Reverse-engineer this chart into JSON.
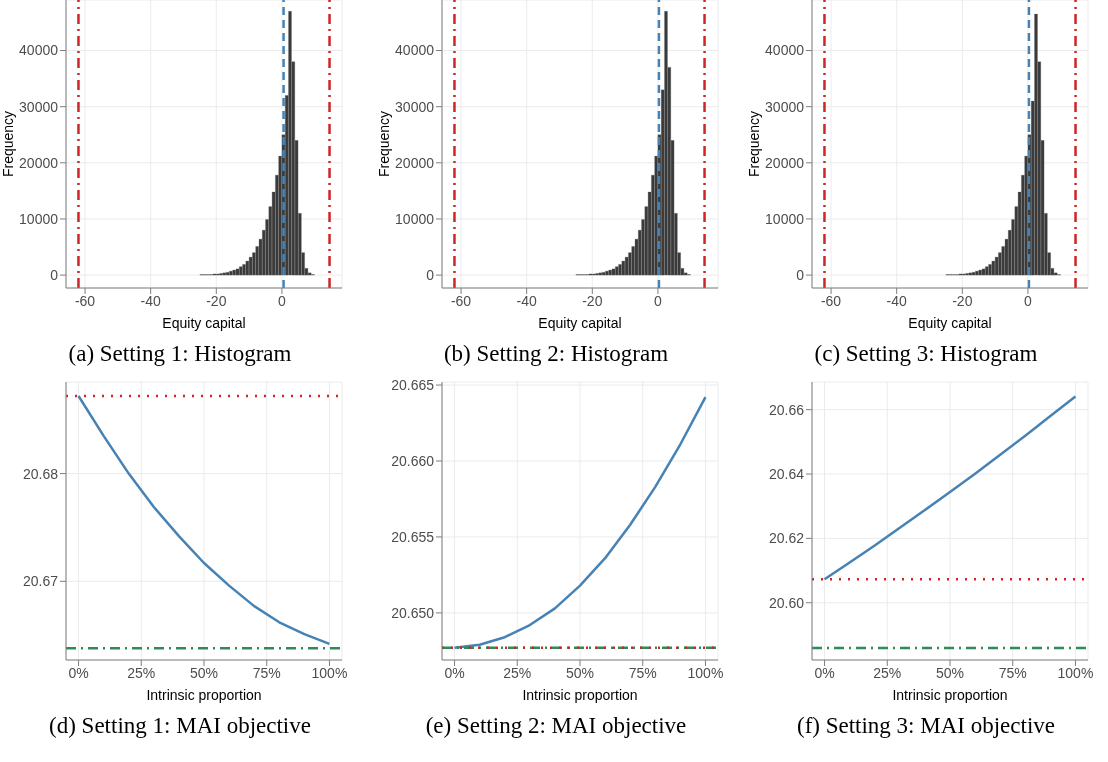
{
  "chart_data": [
    {
      "type": "histogram",
      "title": "(a) Setting 1: Histogram",
      "xlabel": "Equity capital",
      "ylabel": "Frequency",
      "color": "#3a3a3a",
      "grid": true,
      "bins": [
        -62,
        -61,
        -60,
        -59,
        -58,
        -57,
        -56,
        -55,
        -54,
        -53,
        -52,
        -51,
        -50,
        -49,
        -48,
        -47,
        -46,
        -45,
        -44,
        -43,
        -42,
        -41,
        -40,
        -39,
        -38,
        -37,
        -36,
        -35,
        -34,
        -33,
        -32,
        -31,
        -30,
        -29,
        -28,
        -27,
        -26,
        -25,
        -24,
        -23,
        -22,
        -21,
        -20,
        -19,
        -18,
        -17,
        -16,
        -15,
        -14,
        -13,
        -12,
        -11,
        -10,
        -9,
        -8,
        -7,
        -6,
        -5,
        -4,
        -3,
        -2,
        -1,
        0,
        1,
        2,
        3,
        4,
        5,
        6,
        7,
        8,
        9,
        10,
        11,
        12,
        13,
        14,
        15
      ],
      "values": [
        0,
        0,
        0,
        0,
        0,
        0,
        0,
        0,
        0,
        0,
        0,
        0,
        0,
        0,
        0,
        0,
        0,
        0,
        0,
        0,
        0,
        0,
        0,
        0,
        0,
        0,
        0,
        0,
        0,
        0,
        0,
        0,
        0,
        0,
        0,
        0,
        0,
        100,
        100,
        100,
        100,
        200,
        200,
        300,
        400,
        500,
        700,
        900,
        1100,
        1500,
        1900,
        2500,
        3200,
        4000,
        5100,
        6400,
        8000,
        9900,
        12200,
        14800,
        17800,
        21200,
        25000,
        32000,
        47000,
        38000,
        24000,
        11000,
        4000,
        1200,
        400,
        100,
        0,
        0,
        0,
        0,
        0
      ],
      "xlim": [
        -65.8,
        18.3
      ],
      "xticks": [
        -60,
        -40,
        -20,
        0
      ],
      "ylim": [
        -2300,
        49000
      ],
      "yticks": [
        0,
        10000,
        20000,
        30000,
        40000
      ],
      "ref_lines": [
        {
          "axis": "x",
          "value": -62,
          "color": "#cd2626",
          "line_style": "dashdot"
        },
        {
          "axis": "x",
          "value": 0.5,
          "color": "#4682b4",
          "line_style": "dashed"
        },
        {
          "axis": "x",
          "value": 14.5,
          "color": "#cd2626",
          "line_style": "dashdot"
        }
      ]
    },
    {
      "type": "histogram",
      "title": "(b) Setting 2: Histogram",
      "xlabel": "Equity capital",
      "ylabel": "Frequency",
      "color": "#3a3a3a",
      "grid": true,
      "bins": [
        -62,
        -61,
        -60,
        -59,
        -58,
        -57,
        -56,
        -55,
        -54,
        -53,
        -52,
        -51,
        -50,
        -49,
        -48,
        -47,
        -46,
        -45,
        -44,
        -43,
        -42,
        -41,
        -40,
        -39,
        -38,
        -37,
        -36,
        -35,
        -34,
        -33,
        -32,
        -31,
        -30,
        -29,
        -28,
        -27,
        -26,
        -25,
        -24,
        -23,
        -22,
        -21,
        -20,
        -19,
        -18,
        -17,
        -16,
        -15,
        -14,
        -13,
        -12,
        -11,
        -10,
        -9,
        -8,
        -7,
        -6,
        -5,
        -4,
        -3,
        -2,
        -1,
        0,
        1,
        2,
        3,
        4,
        5,
        6,
        7,
        8,
        9,
        10,
        11,
        12,
        13,
        14,
        15
      ],
      "values": [
        0,
        0,
        0,
        0,
        0,
        0,
        0,
        0,
        0,
        0,
        0,
        0,
        0,
        0,
        0,
        0,
        0,
        0,
        0,
        0,
        0,
        0,
        0,
        0,
        0,
        0,
        0,
        0,
        0,
        0,
        0,
        0,
        0,
        0,
        0,
        0,
        0,
        100,
        100,
        100,
        100,
        200,
        200,
        300,
        400,
        500,
        700,
        900,
        1100,
        1500,
        1900,
        2500,
        3200,
        4000,
        5100,
        6400,
        8000,
        9900,
        12200,
        14800,
        17800,
        21200,
        25000,
        33000,
        47000,
        37000,
        24000,
        11000,
        4000,
        1200,
        400,
        100,
        0,
        0,
        0,
        0,
        0
      ],
      "xlim": [
        -65.8,
        18.3
      ],
      "xticks": [
        -60,
        -40,
        -20,
        0
      ],
      "ylim": [
        -2300,
        49000
      ],
      "yticks": [
        0,
        10000,
        20000,
        30000,
        40000
      ],
      "ref_lines": [
        {
          "axis": "x",
          "value": -62,
          "color": "#cd2626",
          "line_style": "dashdot"
        },
        {
          "axis": "x",
          "value": 0.3,
          "color": "#4682b4",
          "line_style": "dashed"
        },
        {
          "axis": "x",
          "value": 14.2,
          "color": "#cd2626",
          "line_style": "dashdot"
        }
      ]
    },
    {
      "type": "histogram",
      "title": "(c) Setting 3: Histogram",
      "xlabel": "Equity capital",
      "ylabel": "Frequency",
      "color": "#3a3a3a",
      "grid": true,
      "bins": [
        -62,
        -61,
        -60,
        -59,
        -58,
        -57,
        -56,
        -55,
        -54,
        -53,
        -52,
        -51,
        -50,
        -49,
        -48,
        -47,
        -46,
        -45,
        -44,
        -43,
        -42,
        -41,
        -40,
        -39,
        -38,
        -37,
        -36,
        -35,
        -34,
        -33,
        -32,
        -31,
        -30,
        -29,
        -28,
        -27,
        -26,
        -25,
        -24,
        -23,
        -22,
        -21,
        -20,
        -19,
        -18,
        -17,
        -16,
        -15,
        -14,
        -13,
        -12,
        -11,
        -10,
        -9,
        -8,
        -7,
        -6,
        -5,
        -4,
        -3,
        -2,
        -1,
        0,
        1,
        2,
        3,
        4,
        5,
        6,
        7,
        8,
        9,
        10,
        11,
        12,
        13,
        14,
        15
      ],
      "values": [
        0,
        0,
        0,
        0,
        0,
        0,
        0,
        0,
        0,
        0,
        0,
        0,
        0,
        0,
        0,
        0,
        0,
        0,
        0,
        0,
        0,
        0,
        0,
        0,
        0,
        0,
        0,
        0,
        0,
        0,
        0,
        0,
        0,
        0,
        0,
        0,
        0,
        100,
        100,
        100,
        100,
        200,
        200,
        300,
        400,
        500,
        700,
        900,
        1100,
        1500,
        1900,
        2500,
        3200,
        4000,
        5100,
        6400,
        8000,
        9900,
        12200,
        14800,
        17800,
        21200,
        25000,
        31000,
        46500,
        38000,
        24000,
        11000,
        4000,
        1200,
        400,
        100,
        0,
        0,
        0,
        0,
        0
      ],
      "xlim": [
        -65.8,
        18.3
      ],
      "xticks": [
        -60,
        -40,
        -20,
        0
      ],
      "ylim": [
        -2300,
        49000
      ],
      "yticks": [
        0,
        10000,
        20000,
        30000,
        40000
      ],
      "ref_lines": [
        {
          "axis": "x",
          "value": -62,
          "color": "#cd2626",
          "line_style": "dashdot"
        },
        {
          "axis": "x",
          "value": 0.3,
          "color": "#4682b4",
          "line_style": "dashed"
        },
        {
          "axis": "x",
          "value": 14.5,
          "color": "#cd2626",
          "line_style": "dashdot"
        }
      ]
    },
    {
      "type": "line",
      "title": "(d) Setting 1: MAI objective",
      "xlabel": "Intrinsic proportion",
      "color": "#4682b4",
      "grid": true,
      "x": [
        0,
        10,
        20,
        30,
        40,
        50,
        60,
        70,
        80,
        90,
        100
      ],
      "values": [
        20.6872,
        20.6835,
        20.68,
        20.6769,
        20.6742,
        20.6717,
        20.6696,
        20.6677,
        20.6662,
        20.6651,
        20.6642
      ],
      "xlim": [
        -5,
        105
      ],
      "xticks": [
        {
          "value": 0,
          "label": "0%"
        },
        {
          "value": 25,
          "label": "25%"
        },
        {
          "value": 50,
          "label": "50%"
        },
        {
          "value": 75,
          "label": "75%"
        },
        {
          "value": 100,
          "label": "100%"
        }
      ],
      "ylim": [
        20.6627,
        20.6885
      ],
      "yticks": [
        20.67,
        20.68
      ],
      "ref_lines": [
        {
          "axis": "y",
          "value": 20.6872,
          "color": "#cd2626",
          "line_style": "dotted"
        },
        {
          "axis": "y",
          "value": 20.6638,
          "color": "#2e8b57",
          "line_style": "dashdot"
        }
      ]
    },
    {
      "type": "line",
      "title": "(e) Setting 2: MAI objective",
      "xlabel": "Intrinsic proportion",
      "color": "#4682b4",
      "grid": true,
      "x": [
        0,
        10,
        20,
        30,
        40,
        50,
        60,
        70,
        80,
        90,
        100
      ],
      "values": [
        20.6477,
        20.6479,
        20.6484,
        20.6492,
        20.6503,
        20.6518,
        20.6536,
        20.6558,
        20.6583,
        20.6611,
        20.6642
      ],
      "xlim": [
        -5,
        105
      ],
      "xticks": [
        {
          "value": 0,
          "label": "0%"
        },
        {
          "value": 25,
          "label": "25%"
        },
        {
          "value": 50,
          "label": "50%"
        },
        {
          "value": 75,
          "label": "75%"
        },
        {
          "value": 100,
          "label": "100%"
        }
      ],
      "ylim": [
        20.6469,
        20.6652
      ],
      "yticks": [
        {
          "value": 20.65,
          "label": "20.650"
        },
        {
          "value": 20.655,
          "label": "20.655"
        },
        {
          "value": 20.66,
          "label": "20.660"
        },
        {
          "value": 20.665,
          "label": "20.665"
        }
      ],
      "ref_lines": [
        {
          "axis": "y",
          "value": 20.6477,
          "color": "#2e8b57",
          "line_style": "dashdot"
        },
        {
          "axis": "y",
          "value": 20.6477,
          "color": "#cd2626",
          "line_style": "dotted"
        }
      ]
    },
    {
      "type": "line",
      "title": "(f) Setting 3: MAI objective",
      "xlabel": "Intrinsic proportion",
      "color": "#4682b4",
      "grid": true,
      "x": [
        0,
        10,
        20,
        30,
        40,
        50,
        60,
        70,
        80,
        90,
        100
      ],
      "values": [
        20.6073,
        20.6125,
        20.6178,
        20.6233,
        20.6288,
        20.6344,
        20.6401,
        20.646,
        20.6519,
        20.658,
        20.6641
      ],
      "xlim": [
        -5,
        105
      ],
      "xticks": [
        {
          "value": 0,
          "label": "0%"
        },
        {
          "value": 25,
          "label": "25%"
        },
        {
          "value": 50,
          "label": "50%"
        },
        {
          "value": 75,
          "label": "75%"
        },
        {
          "value": 100,
          "label": "100%"
        }
      ],
      "ylim": [
        20.5822,
        20.6686
      ],
      "yticks": [
        {
          "value": 20.6,
          "label": "20.60"
        },
        {
          "value": 20.62,
          "label": "20.62"
        },
        {
          "value": 20.64,
          "label": "20.64"
        },
        {
          "value": 20.66,
          "label": "20.66"
        }
      ],
      "ref_lines": [
        {
          "axis": "y",
          "value": 20.6073,
          "color": "#cd2626",
          "line_style": "dotted"
        },
        {
          "axis": "y",
          "value": 20.5859,
          "color": "#2e8b57",
          "line_style": "dashdot"
        }
      ]
    }
  ]
}
